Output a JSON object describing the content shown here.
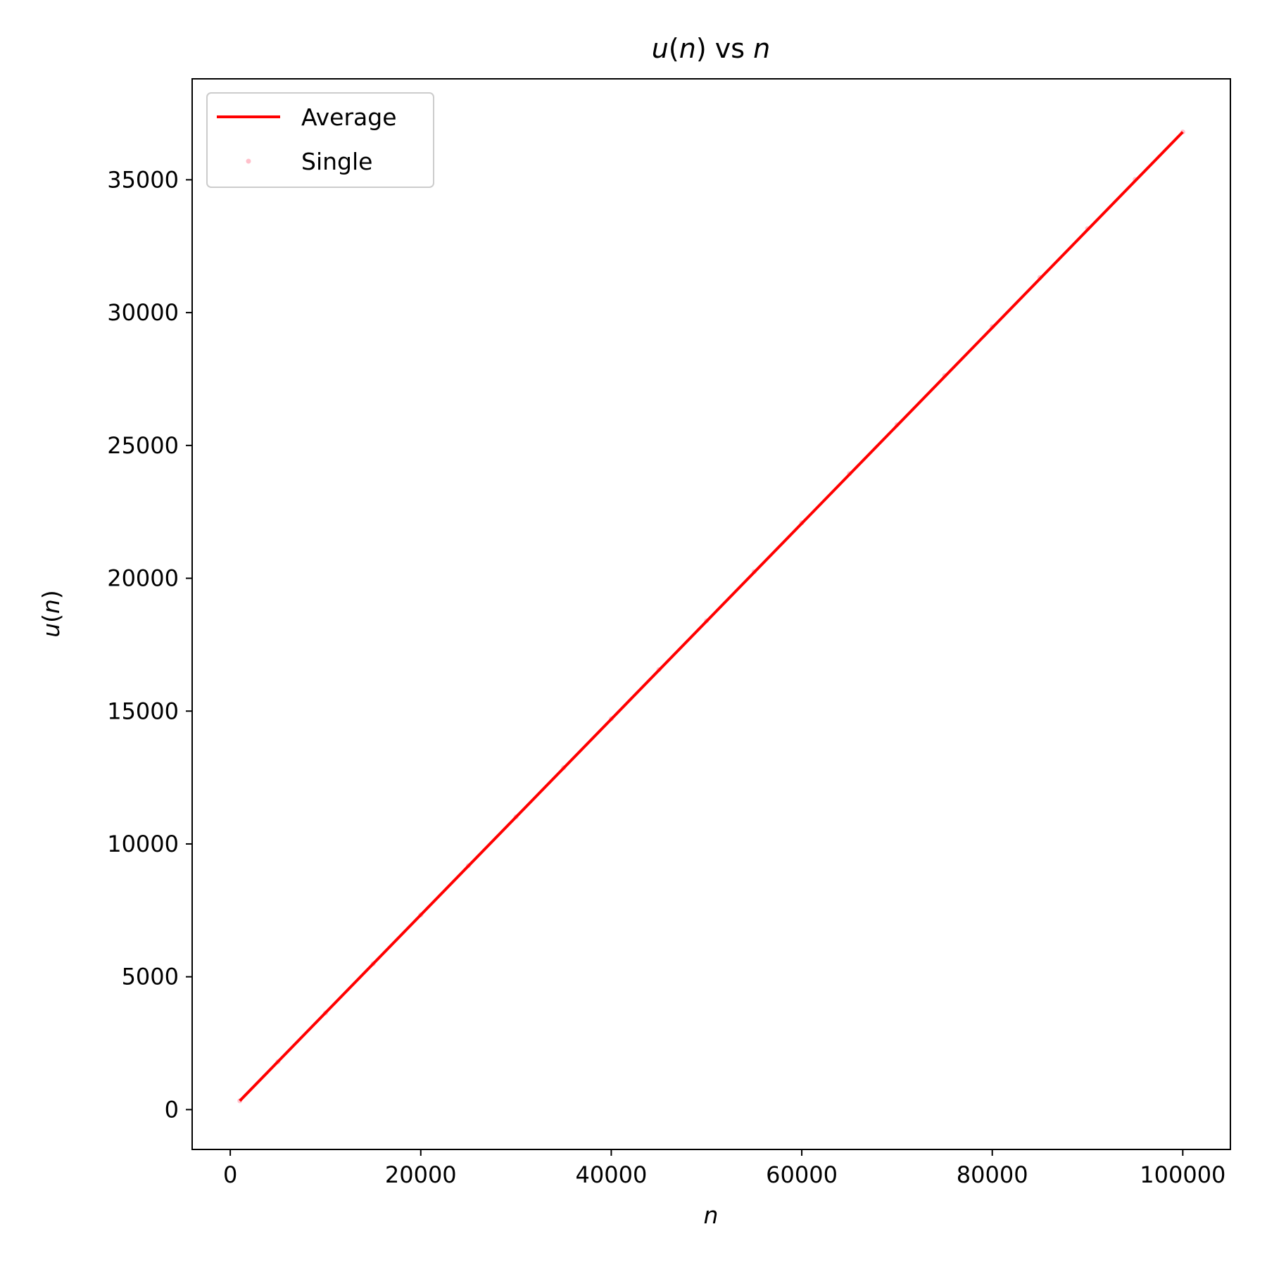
{
  "chart_data": {
    "type": "line",
    "title": "u(n) vs n",
    "xlabel": "n",
    "ylabel": "u(n)",
    "xlim": [
      -4000,
      105000
    ],
    "ylim": [
      -1500,
      38800
    ],
    "x_ticks": [
      0,
      20000,
      40000,
      60000,
      80000,
      100000
    ],
    "y_ticks": [
      0,
      5000,
      10000,
      15000,
      20000,
      25000,
      30000,
      35000
    ],
    "grid": false,
    "legend": "top-left",
    "series": [
      {
        "name": "Average",
        "kind": "line",
        "color": "#ff0000",
        "x": [
          1000,
          100000
        ],
        "y": [
          330,
          36800
        ]
      },
      {
        "name": "Single",
        "kind": "scatter",
        "color": "#ffc0cb",
        "x": [
          1000,
          5000,
          10000,
          15000,
          20000,
          25000,
          30000,
          35000,
          40000,
          45000,
          50000,
          55000,
          60000,
          65000,
          70000,
          75000,
          80000,
          85000,
          90000,
          95000,
          100000
        ],
        "y": [
          330,
          1800,
          3640,
          5490,
          7330,
          9180,
          11020,
          12870,
          14710,
          16560,
          18400,
          20250,
          22090,
          23940,
          25780,
          27630,
          29470,
          31320,
          33160,
          35010,
          36800
        ]
      }
    ]
  }
}
